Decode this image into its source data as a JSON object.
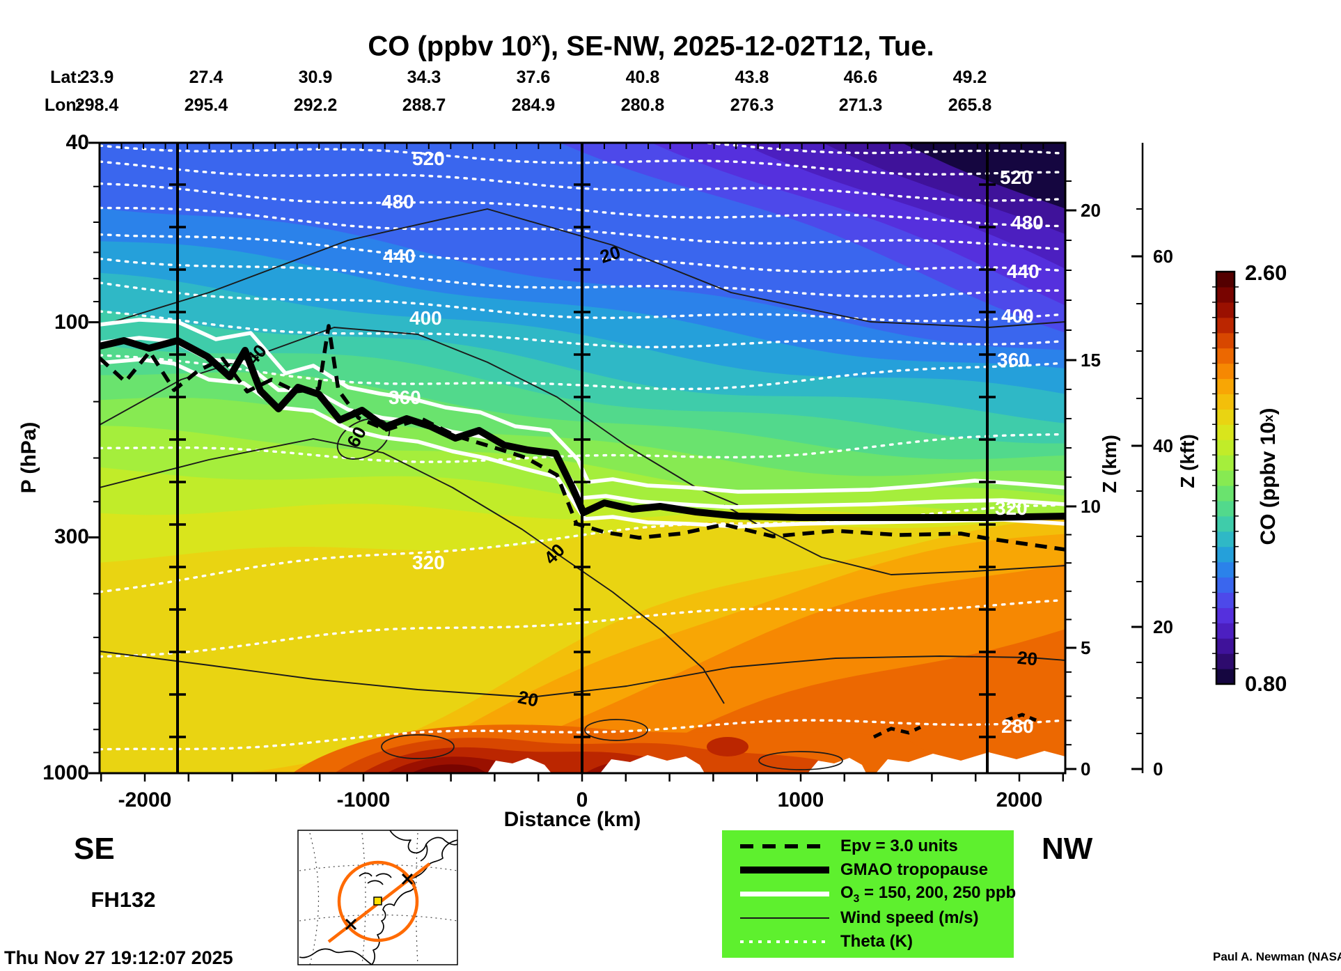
{
  "title": {
    "prefix": "CO (ppbv 10",
    "sup": "x",
    "suffix": "), SE-NW, 2025-12-02T12, Tue."
  },
  "header": {
    "lat_label": "Lat:",
    "lon_label": "Lon:",
    "lat_values": [
      "23.9",
      "27.4",
      "30.9",
      "34.3",
      "37.6",
      "40.8",
      "43.8",
      "46.6",
      "49.2"
    ],
    "lon_values": [
      "298.4",
      "295.4",
      "292.2",
      "288.7",
      "284.9",
      "280.8",
      "276.3",
      "271.3",
      "265.8"
    ]
  },
  "axes": {
    "pressure": {
      "title": "P (hPa)",
      "ticks": [
        "40",
        "100",
        "300",
        "1000"
      ]
    },
    "distance": {
      "title": "Distance (km)",
      "ticks": [
        "-2000",
        "-1000",
        "0",
        "1000",
        "2000"
      ]
    },
    "z_km": {
      "title": "Z (km)",
      "ticks": [
        "20",
        "15",
        "10",
        "5",
        "0"
      ]
    },
    "z_kft": {
      "title": "Z (kft)",
      "ticks": [
        "60",
        "40",
        "20",
        "0"
      ]
    }
  },
  "endpoints": {
    "start": "SE",
    "end": "NW"
  },
  "forecast_hour": "FH132",
  "timestamp": "Thu Nov 27 19:12:07 2025",
  "attribution": "Paul A. Newman (NASA",
  "colorbar": {
    "max": "2.60",
    "min": "0.80",
    "title_prefix": "CO (ppbv 10",
    "title_sup": "x",
    "title_suffix": ")",
    "colors": [
      "#150640",
      "#2e0b6e",
      "#3f129a",
      "#4c1fc0",
      "#5530dd",
      "#4d49ea",
      "#3a66ee",
      "#2b82ea",
      "#25a0da",
      "#2fb8c6",
      "#3fccaa",
      "#52d98c",
      "#6ae36e",
      "#87ea52",
      "#a5ee3c",
      "#c1ec29",
      "#d9e51c",
      "#e9d412",
      "#f3bf0a",
      "#f8a605",
      "#f68802",
      "#ec6801",
      "#d84700",
      "#bb2600",
      "#9a1000",
      "#780400",
      "#540000"
    ]
  },
  "legend": {
    "bg": "#5ef02e",
    "items": [
      {
        "label": "Epv = 3.0 units",
        "style": "dashed-black"
      },
      {
        "label": "GMAO tropopause",
        "style": "thick-black"
      },
      {
        "label_prefix": "O",
        "label_sub": "3",
        "label_suffix": " = 150, 200, 250 ppb",
        "style": "white-solid"
      },
      {
        "label": "Wind speed (m/s)",
        "style": "thin-black"
      },
      {
        "label": "Theta (K)",
        "style": "dotted-white"
      }
    ]
  },
  "plot_labels": {
    "theta_left": [
      "520",
      "480",
      "440",
      "400",
      "360",
      "320"
    ],
    "theta_right": [
      "520",
      "480",
      "440",
      "400",
      "360",
      "320",
      "280"
    ],
    "wind": [
      "20",
      "40",
      "60",
      "40",
      "20",
      "20"
    ]
  },
  "map_inset": {
    "circle_color": "#ff6a00",
    "marker_color": "#ffe000"
  },
  "chart_data": {
    "type": "heatmap",
    "subtype": "filled-contour-vertical-cross-section",
    "title": "CO (ppbv 10^x), SE-NW, 2025-12-02T12, Tue.",
    "x": {
      "label": "Distance (km)",
      "range": [
        -2210,
        2210
      ],
      "ticks": [
        -2000,
        -1000,
        0,
        1000,
        2000
      ]
    },
    "y": {
      "label": "P (hPa)",
      "scale": "log",
      "range": [
        40,
        1000
      ],
      "ticks": [
        40,
        100,
        300,
        1000
      ]
    },
    "secondary_y": [
      {
        "label": "Z (km)",
        "ticks": [
          20,
          15,
          10,
          5,
          0
        ]
      },
      {
        "label": "Z (kft)",
        "ticks": [
          60,
          40,
          20,
          0
        ]
      }
    ],
    "fill_field": {
      "name": "CO",
      "units": "ppbv 10^x",
      "min": 0.8,
      "max": 2.6,
      "description": "low CO (0.8, dark purple) in stratosphere at top, high CO (2.2-2.6, orange/dark red) near surface at bottom"
    },
    "waypoints": {
      "lat": [
        23.9,
        27.4,
        30.9,
        34.3,
        37.6,
        40.8,
        43.8,
        46.6,
        49.2
      ],
      "lon": [
        298.4,
        295.4,
        292.2,
        288.7,
        284.9,
        280.8,
        276.3,
        271.3,
        265.8
      ]
    },
    "vertical_marker_lines_km": [
      -1850,
      0,
      1850
    ],
    "contours": [
      {
        "field": "Theta (K)",
        "style": "white dotted",
        "labeled_levels": [
          280,
          320,
          360,
          400,
          440,
          480,
          520
        ],
        "interval": 20
      },
      {
        "field": "Wind speed (m/s)",
        "style": "thin black",
        "labeled_levels": [
          20,
          40,
          60
        ]
      },
      {
        "field": "O3 (ppb)",
        "style": "white solid",
        "levels": [
          150,
          200,
          250
        ]
      },
      {
        "field": "Epv (units)",
        "style": "black dashed",
        "level": 3.0
      },
      {
        "field": "GMAO tropopause",
        "style": "thick black",
        "approx_height_km": {
          "SE_end": 15.5,
          "NW_end": 9.5
        }
      }
    ],
    "legend_position": "bottom-right green box",
    "grid": false
  }
}
